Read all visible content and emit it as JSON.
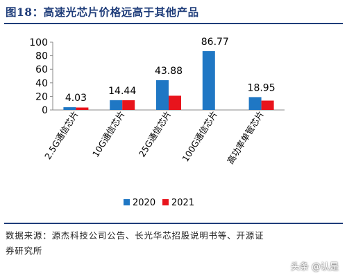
{
  "figure": {
    "title": "图18：高速光芯片价格远高于其他产品",
    "source_lines": [
      "数据来源：源杰科技公司公告、长光华芯招股说明书等、开源证",
      "券研究所"
    ],
    "watermark": "头条 @认是"
  },
  "chart_data": {
    "type": "bar",
    "categories": [
      "2.5G通信芯片",
      "10G通信芯片",
      "25G通信芯片",
      "100G通信芯片",
      "高功率单管芯片"
    ],
    "series": [
      {
        "name": "2020",
        "color": "#1f77c4",
        "values": [
          4.03,
          14.44,
          43.88,
          86.77,
          18.95
        ]
      },
      {
        "name": "2021",
        "color": "#e8141c",
        "values": [
          3.6,
          14.4,
          21.0,
          null,
          13.8
        ]
      }
    ],
    "data_labels": [
      "4.03",
      "14.44",
      "43.88",
      "86.77",
      "18.95"
    ],
    "yticks": [
      0,
      20,
      40,
      60,
      80,
      100
    ],
    "ylim": [
      0,
      100
    ],
    "grid": false,
    "legend_position": "bottom"
  }
}
